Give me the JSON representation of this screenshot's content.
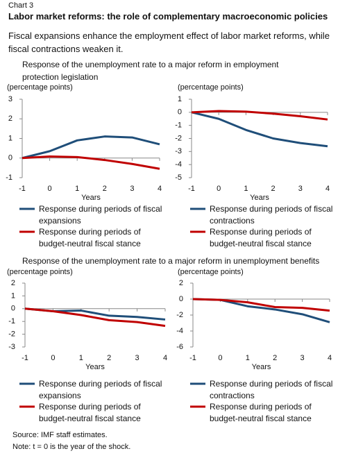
{
  "header": {
    "label": "Chart 3",
    "title": "Labor market reforms: the role of complementary macroeconomic policies",
    "subtitle": "Fiscal expansions enhance the employment effect of labor market reforms, while fiscal contractions weaken it."
  },
  "section_titles": [
    "Response of the unemployment rate to a major reform in employment protection legislation",
    "Response of the unemployment rate to a major reform in unemployment benefits"
  ],
  "chart_data": [
    {
      "type": "line",
      "y_label": "(percentage points)",
      "x_label": "Years",
      "x": [
        -1,
        0,
        1,
        2,
        3,
        4
      ],
      "xlim": [
        -1,
        4
      ],
      "xticks": [
        -1,
        0,
        1,
        2,
        3,
        4
      ],
      "ylim": [
        -1,
        3
      ],
      "yticks": [
        -1,
        0,
        1,
        2,
        3
      ],
      "series": [
        {
          "name": "Response during periods of fiscal expansions",
          "color": "#1f4e79",
          "values": [
            0,
            0.35,
            0.9,
            1.1,
            1.05,
            0.7
          ]
        },
        {
          "name": "Response during periods of budget-neutral fiscal stance",
          "color": "#c00000",
          "values": [
            0,
            0.08,
            0.05,
            -0.1,
            -0.3,
            -0.55
          ]
        }
      ]
    },
    {
      "type": "line",
      "y_label": "(percentage points)",
      "x_label": "Years",
      "x": [
        -1,
        0,
        1,
        2,
        3,
        4
      ],
      "xlim": [
        -1,
        4
      ],
      "xticks": [
        -1,
        0,
        1,
        2,
        3,
        4
      ],
      "ylim": [
        -5,
        1
      ],
      "yticks": [
        -5,
        -4,
        -3,
        -2,
        -1,
        0,
        1
      ],
      "series": [
        {
          "name": "Response during periods of fiscal contractions",
          "color": "#1f4e79",
          "values": [
            0,
            -0.5,
            -1.35,
            -2.0,
            -2.35,
            -2.6
          ]
        },
        {
          "name": "Response during periods of budget-neutral fiscal stance",
          "color": "#c00000",
          "values": [
            0,
            0.1,
            0.05,
            -0.1,
            -0.3,
            -0.55
          ]
        }
      ]
    },
    {
      "type": "line",
      "y_label": "(percentage points)",
      "x_label": "Years",
      "x": [
        -1,
        0,
        1,
        2,
        3,
        4
      ],
      "xlim": [
        -1,
        4
      ],
      "xticks": [
        -1,
        0,
        1,
        2,
        3,
        4
      ],
      "ylim": [
        -3,
        2
      ],
      "yticks": [
        -3,
        -2,
        -1,
        0,
        1,
        2
      ],
      "series": [
        {
          "name": "Response during periods of fiscal expansions",
          "color": "#1f4e79",
          "values": [
            0,
            -0.2,
            -0.15,
            -0.55,
            -0.65,
            -0.85
          ]
        },
        {
          "name": "Response during periods of budget-neutral fiscal stance",
          "color": "#c00000",
          "values": [
            0,
            -0.2,
            -0.5,
            -0.9,
            -1.05,
            -1.35
          ]
        }
      ]
    },
    {
      "type": "line",
      "y_label": "(percentage points)",
      "x_label": "Years",
      "x": [
        -1,
        0,
        1,
        2,
        3,
        4
      ],
      "xlim": [
        -1,
        4
      ],
      "xticks": [
        -1,
        0,
        1,
        2,
        3,
        4
      ],
      "ylim": [
        -6,
        2
      ],
      "yticks": [
        -6,
        -4,
        -2,
        0,
        2
      ],
      "series": [
        {
          "name": "Response during periods of fiscal contractions",
          "color": "#1f4e79",
          "values": [
            0,
            -0.1,
            -0.9,
            -1.3,
            -1.9,
            -2.9
          ]
        },
        {
          "name": "Response during periods of budget-neutral fiscal stance",
          "color": "#c00000",
          "values": [
            0,
            -0.1,
            -0.4,
            -1.0,
            -1.1,
            -1.45
          ]
        }
      ]
    }
  ],
  "footnotes": [
    "Source: IMF staff estimates.",
    "Note: t = 0 is the year of the shock."
  ]
}
